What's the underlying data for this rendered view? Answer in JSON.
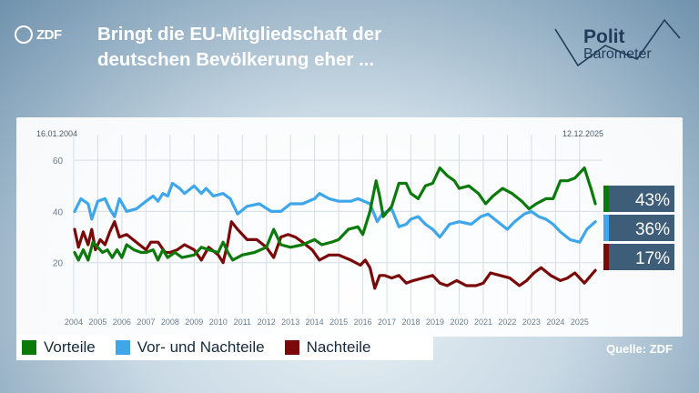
{
  "header": {
    "logo_text": "ZDF",
    "title_line1": "Bringt die EU-Mitgliedschaft der",
    "title_line2": "deutschen Bevölkerung eher ...",
    "brand_line1": "Polit",
    "brand_line2": "Barometer"
  },
  "source": "Quelle: ZDF",
  "colors": {
    "vorteile": "#0b7a0b",
    "beides": "#3ea6ea",
    "nachteile": "#7a0a0a",
    "label_box": "#3d5d78"
  },
  "chart_data": {
    "type": "line",
    "title": "Bringt die EU-Mitgliedschaft der deutschen Bevölkerung eher ...",
    "xlabel": "",
    "ylabel": "",
    "x_range": [
      2004.04,
      2025.95
    ],
    "ylim": [
      0,
      70
    ],
    "y_ticks": [
      20,
      40,
      60
    ],
    "x_ticks": [
      "2004",
      "2005",
      "2006",
      "2007",
      "2008",
      "2009",
      "2010",
      "2011",
      "2012",
      "2013",
      "2014",
      "2015",
      "2016",
      "2017",
      "2018",
      "2019",
      "2020",
      "2021",
      "2022",
      "2023",
      "2024",
      "2025"
    ],
    "start_date": "16.01.2004",
    "end_date": "12.12.2025",
    "grid": true,
    "legend_position": "bottom-left",
    "series": [
      {
        "name": "Vorteile",
        "color": "#0b7a0b",
        "final_label": "43%",
        "points": [
          [
            2004.04,
            24
          ],
          [
            2004.2,
            21
          ],
          [
            2004.4,
            25
          ],
          [
            2004.6,
            21
          ],
          [
            2004.8,
            28
          ],
          [
            2005.0,
            26
          ],
          [
            2005.2,
            24
          ],
          [
            2005.4,
            25
          ],
          [
            2005.6,
            22
          ],
          [
            2005.8,
            25
          ],
          [
            2006.0,
            22
          ],
          [
            2006.2,
            27
          ],
          [
            2006.5,
            25
          ],
          [
            2006.8,
            24
          ],
          [
            2007.0,
            24
          ],
          [
            2007.3,
            25
          ],
          [
            2007.5,
            21
          ],
          [
            2007.7,
            25
          ],
          [
            2007.9,
            22
          ],
          [
            2008.2,
            24
          ],
          [
            2008.5,
            22
          ],
          [
            2009.0,
            23
          ],
          [
            2009.3,
            26
          ],
          [
            2009.6,
            25
          ],
          [
            2010.0,
            24
          ],
          [
            2010.2,
            28
          ],
          [
            2010.4,
            24
          ],
          [
            2010.6,
            21
          ],
          [
            2011.0,
            23
          ],
          [
            2011.5,
            24
          ],
          [
            2012.0,
            26
          ],
          [
            2012.3,
            33
          ],
          [
            2012.6,
            27
          ],
          [
            2013.0,
            26
          ],
          [
            2013.5,
            27
          ],
          [
            2014.0,
            29
          ],
          [
            2014.3,
            27
          ],
          [
            2014.7,
            28
          ],
          [
            2015.0,
            29
          ],
          [
            2015.4,
            33
          ],
          [
            2015.8,
            34
          ],
          [
            2016.0,
            31
          ],
          [
            2016.3,
            40
          ],
          [
            2016.55,
            52
          ],
          [
            2016.7,
            46
          ],
          [
            2016.85,
            38
          ],
          [
            2017.2,
            42
          ],
          [
            2017.5,
            51
          ],
          [
            2017.8,
            51
          ],
          [
            2018.0,
            47
          ],
          [
            2018.3,
            45
          ],
          [
            2018.6,
            50
          ],
          [
            2018.9,
            51
          ],
          [
            2019.2,
            57
          ],
          [
            2019.5,
            54
          ],
          [
            2019.8,
            52
          ],
          [
            2020.0,
            49
          ],
          [
            2020.4,
            50
          ],
          [
            2020.8,
            47
          ],
          [
            2021.1,
            43
          ],
          [
            2021.4,
            46
          ],
          [
            2021.8,
            49
          ],
          [
            2022.2,
            47
          ],
          [
            2022.6,
            44
          ],
          [
            2022.9,
            41
          ],
          [
            2023.2,
            43
          ],
          [
            2023.6,
            45
          ],
          [
            2023.9,
            45
          ],
          [
            2024.2,
            52
          ],
          [
            2024.5,
            52
          ],
          [
            2024.8,
            53
          ],
          [
            2025.2,
            57
          ],
          [
            2025.5,
            48
          ],
          [
            2025.65,
            43
          ]
        ]
      },
      {
        "name": "Vor- und Nachteile",
        "color": "#3ea6ea",
        "final_label": "36%",
        "points": [
          [
            2004.04,
            40
          ],
          [
            2004.3,
            45
          ],
          [
            2004.6,
            43
          ],
          [
            2004.75,
            37
          ],
          [
            2005.0,
            44
          ],
          [
            2005.3,
            45
          ],
          [
            2005.5,
            41
          ],
          [
            2005.7,
            38
          ],
          [
            2005.9,
            45
          ],
          [
            2006.2,
            40
          ],
          [
            2006.6,
            41
          ],
          [
            2007.0,
            44
          ],
          [
            2007.3,
            46
          ],
          [
            2007.5,
            44
          ],
          [
            2007.7,
            47
          ],
          [
            2007.9,
            46
          ],
          [
            2008.1,
            51
          ],
          [
            2008.4,
            49
          ],
          [
            2008.6,
            47
          ],
          [
            2009.0,
            50
          ],
          [
            2009.3,
            47
          ],
          [
            2009.5,
            49
          ],
          [
            2009.8,
            46
          ],
          [
            2010.2,
            47
          ],
          [
            2010.5,
            45
          ],
          [
            2010.8,
            39
          ],
          [
            2011.2,
            42
          ],
          [
            2011.7,
            43
          ],
          [
            2012.2,
            40
          ],
          [
            2012.6,
            40
          ],
          [
            2013.0,
            43
          ],
          [
            2013.5,
            43
          ],
          [
            2014.0,
            45
          ],
          [
            2014.2,
            47
          ],
          [
            2014.6,
            45
          ],
          [
            2015.0,
            44
          ],
          [
            2015.5,
            44
          ],
          [
            2015.8,
            45
          ],
          [
            2016.3,
            43
          ],
          [
            2016.6,
            36
          ],
          [
            2016.8,
            39
          ],
          [
            2017.2,
            41
          ],
          [
            2017.5,
            34
          ],
          [
            2017.8,
            35
          ],
          [
            2018.0,
            37
          ],
          [
            2018.3,
            38
          ],
          [
            2018.6,
            35
          ],
          [
            2018.9,
            33
          ],
          [
            2019.2,
            30
          ],
          [
            2019.6,
            35
          ],
          [
            2020.0,
            36
          ],
          [
            2020.5,
            35
          ],
          [
            2020.9,
            38
          ],
          [
            2021.2,
            39
          ],
          [
            2021.6,
            36
          ],
          [
            2022.0,
            33
          ],
          [
            2022.3,
            36
          ],
          [
            2022.7,
            39
          ],
          [
            2023.0,
            40
          ],
          [
            2023.3,
            38
          ],
          [
            2023.6,
            37
          ],
          [
            2023.9,
            35
          ],
          [
            2024.2,
            32
          ],
          [
            2024.6,
            29
          ],
          [
            2025.0,
            28
          ],
          [
            2025.3,
            33
          ],
          [
            2025.65,
            36
          ]
        ]
      },
      {
        "name": "Nachteile",
        "color": "#7a0a0a",
        "final_label": "17%",
        "points": [
          [
            2004.04,
            33
          ],
          [
            2004.2,
            26
          ],
          [
            2004.4,
            32
          ],
          [
            2004.6,
            27
          ],
          [
            2004.75,
            33
          ],
          [
            2004.9,
            25
          ],
          [
            2005.1,
            29
          ],
          [
            2005.3,
            27
          ],
          [
            2005.5,
            32
          ],
          [
            2005.7,
            36
          ],
          [
            2005.9,
            30
          ],
          [
            2006.2,
            31
          ],
          [
            2006.6,
            28
          ],
          [
            2007.0,
            25
          ],
          [
            2007.2,
            28
          ],
          [
            2007.5,
            28
          ],
          [
            2007.8,
            24
          ],
          [
            2008.0,
            24
          ],
          [
            2008.3,
            25
          ],
          [
            2008.6,
            27
          ],
          [
            2009.0,
            25
          ],
          [
            2009.3,
            21
          ],
          [
            2009.6,
            26
          ],
          [
            2010.0,
            23
          ],
          [
            2010.2,
            20
          ],
          [
            2010.4,
            28
          ],
          [
            2010.55,
            36
          ],
          [
            2010.8,
            33
          ],
          [
            2011.2,
            29
          ],
          [
            2011.6,
            29
          ],
          [
            2012.0,
            26
          ],
          [
            2012.3,
            22
          ],
          [
            2012.6,
            30
          ],
          [
            2012.9,
            31
          ],
          [
            2013.2,
            30
          ],
          [
            2013.5,
            28
          ],
          [
            2013.9,
            25
          ],
          [
            2014.2,
            21
          ],
          [
            2014.6,
            23
          ],
          [
            2015.0,
            23
          ],
          [
            2015.5,
            21
          ],
          [
            2015.9,
            19
          ],
          [
            2016.1,
            21
          ],
          [
            2016.3,
            18
          ],
          [
            2016.5,
            10
          ],
          [
            2016.7,
            15
          ],
          [
            2016.9,
            15
          ],
          [
            2017.2,
            14
          ],
          [
            2017.5,
            15
          ],
          [
            2017.8,
            12
          ],
          [
            2018.1,
            13
          ],
          [
            2018.5,
            14
          ],
          [
            2018.9,
            15
          ],
          [
            2019.2,
            12
          ],
          [
            2019.5,
            11
          ],
          [
            2019.9,
            13
          ],
          [
            2020.3,
            11
          ],
          [
            2020.7,
            11
          ],
          [
            2021.0,
            12
          ],
          [
            2021.3,
            16
          ],
          [
            2021.7,
            15
          ],
          [
            2022.1,
            14
          ],
          [
            2022.5,
            11
          ],
          [
            2022.8,
            13
          ],
          [
            2023.1,
            16
          ],
          [
            2023.4,
            18
          ],
          [
            2023.8,
            15
          ],
          [
            2024.2,
            13
          ],
          [
            2024.5,
            14
          ],
          [
            2024.8,
            16
          ],
          [
            2025.2,
            12
          ],
          [
            2025.65,
            17
          ]
        ]
      }
    ]
  }
}
